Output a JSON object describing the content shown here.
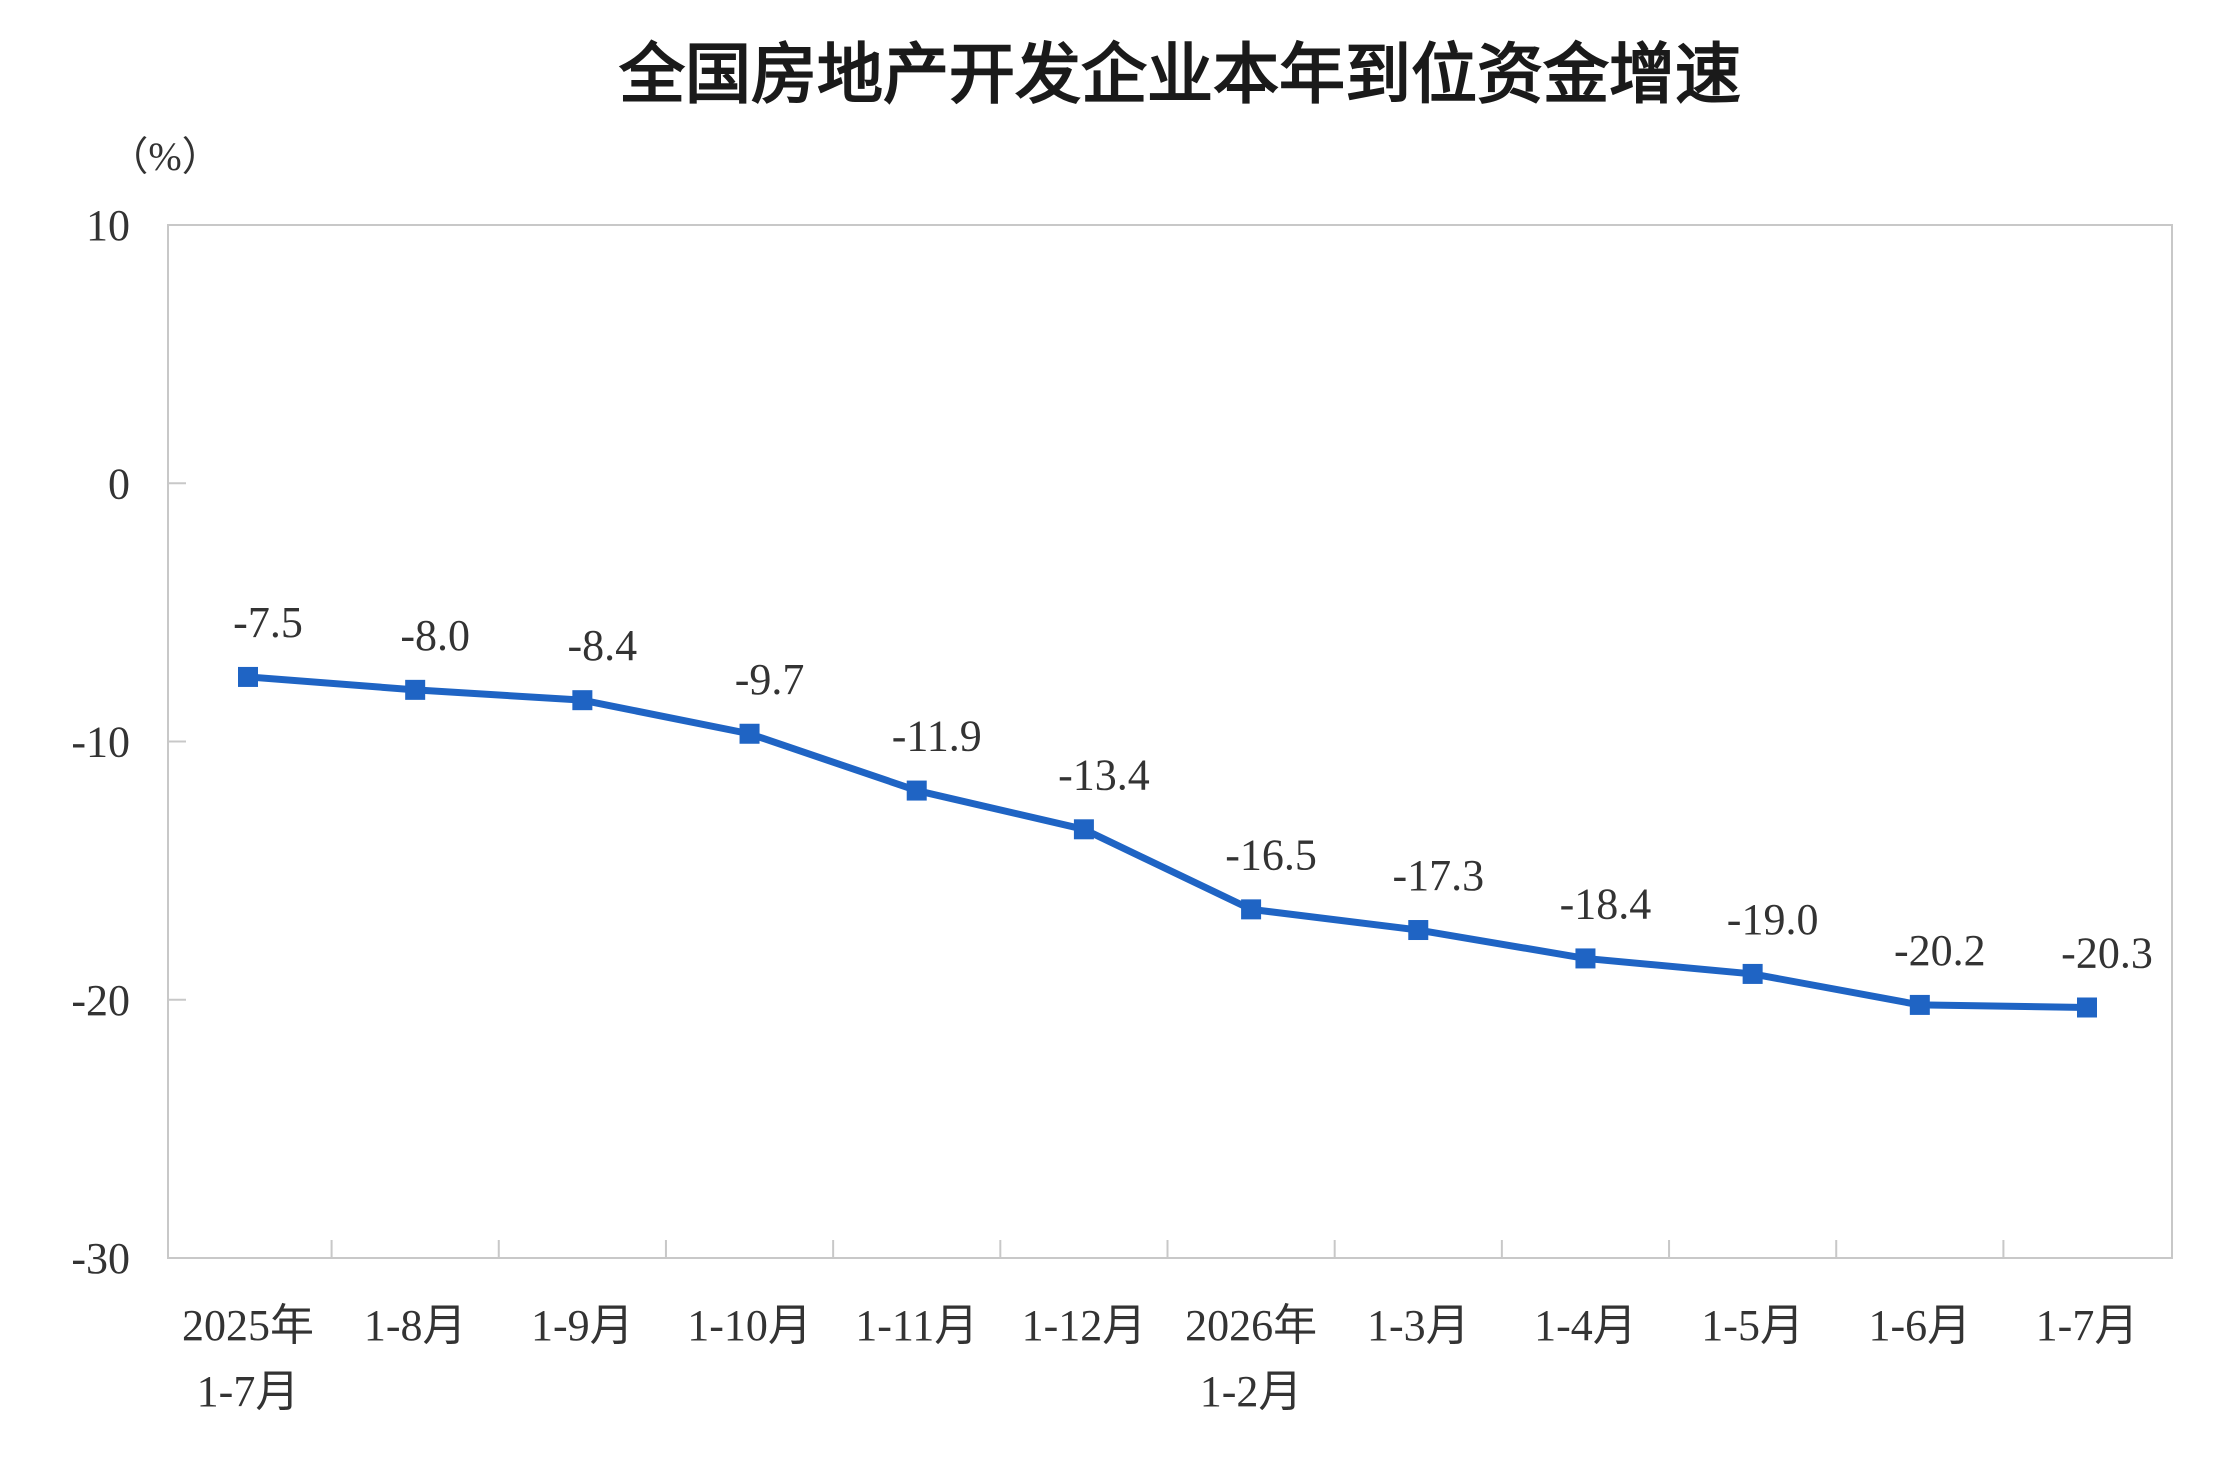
{
  "chart_data": {
    "type": "line",
    "title": "全国房地产开发企业本年到位资金增速",
    "ylabel": "（%）",
    "xlabel": "",
    "ylim": [
      -30,
      10
    ],
    "yticks": [
      "10",
      "0",
      "-10",
      "-20",
      "-30"
    ],
    "ytick_values": [
      10,
      0,
      -10,
      -20,
      -30
    ],
    "categories": [
      [
        "2025年",
        "1-7月"
      ],
      [
        "1-8月"
      ],
      [
        "1-9月"
      ],
      [
        "1-10月"
      ],
      [
        "1-11月"
      ],
      [
        "1-12月"
      ],
      [
        "2026年",
        "1-2月"
      ],
      [
        "1-3月"
      ],
      [
        "1-4月"
      ],
      [
        "1-5月"
      ],
      [
        "1-6月"
      ],
      [
        "1-7月"
      ]
    ],
    "series": [
      {
        "values": [
          -7.5,
          -8.0,
          -8.4,
          -9.7,
          -11.9,
          -13.4,
          -16.5,
          -17.3,
          -18.4,
          -19.0,
          -20.2,
          -20.3
        ],
        "labels": [
          "-7.5",
          "-8.0",
          "-8.4",
          "-9.7",
          "-11.9",
          "-13.4",
          "-16.5",
          "-17.3",
          "-18.4",
          "-19.0",
          "-20.2",
          "-20.3"
        ]
      }
    ],
    "grid": false,
    "colors": {
      "line": "#1f64c4",
      "marker": "#1f64c4",
      "axis": "#c8c8c8",
      "text": "#333333"
    }
  }
}
